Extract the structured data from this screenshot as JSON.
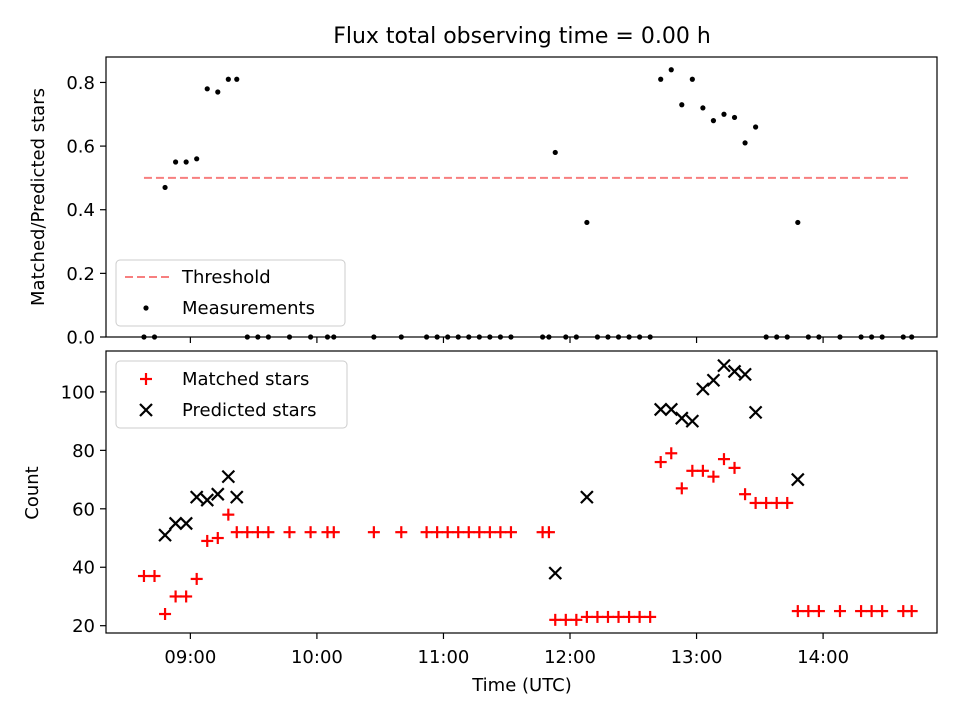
{
  "title": "Flux total observing time = 0.00 h",
  "colors": {
    "threshold": "#f77f7f",
    "measurement": "#000000",
    "matched": "#ff0000",
    "predicted": "#000000",
    "axes": "#000000",
    "legend_border": "#cccccc"
  },
  "chart_data": [
    {
      "type": "scatter",
      "panel": "top",
      "title": "Flux total observing time = 0.00 h",
      "ylabel": "Matched/Predicted stars",
      "xlabel": "",
      "xlim": [
        "08:20",
        "14:54"
      ],
      "ylim": [
        0,
        0.88
      ],
      "yticks": [
        0.0,
        0.2,
        0.4,
        0.6,
        0.8
      ],
      "ytick_labels": [
        "0.0",
        "0.2",
        "0.4",
        "0.6",
        "0.8"
      ],
      "xticks": [
        "09:00",
        "10:00",
        "11:00",
        "12:00",
        "13:00",
        "14:00"
      ],
      "legend_position": "lower-left",
      "legend": [
        {
          "label": "Threshold",
          "marker": "dashed-line",
          "color": "#f77f7f"
        },
        {
          "label": "Measurements",
          "marker": "dot",
          "color": "#000000"
        }
      ],
      "threshold": {
        "name": "Threshold",
        "value": 0.5,
        "x_range": [
          "08:38",
          "14:42"
        ]
      },
      "series": [
        {
          "name": "Measurements",
          "marker": "dot",
          "points": [
            [
              "08:38",
              0.0
            ],
            [
              "08:43",
              0.0
            ],
            [
              "08:48",
              0.47
            ],
            [
              "08:53",
              0.55
            ],
            [
              "08:58",
              0.55
            ],
            [
              "09:03",
              0.56
            ],
            [
              "09:08",
              0.78
            ],
            [
              "09:13",
              0.77
            ],
            [
              "09:18",
              0.81
            ],
            [
              "09:22",
              0.81
            ],
            [
              "09:27",
              0.0
            ],
            [
              "09:32",
              0.0
            ],
            [
              "09:37",
              0.0
            ],
            [
              "09:47",
              0.0
            ],
            [
              "09:57",
              0.0
            ],
            [
              "10:05",
              0.0
            ],
            [
              "10:08",
              0.0
            ],
            [
              "10:27",
              0.0
            ],
            [
              "10:40",
              0.0
            ],
            [
              "10:52",
              0.0
            ],
            [
              "10:57",
              0.0
            ],
            [
              "11:02",
              0.0
            ],
            [
              "11:07",
              0.0
            ],
            [
              "11:12",
              0.0
            ],
            [
              "11:17",
              0.0
            ],
            [
              "11:22",
              0.0
            ],
            [
              "11:27",
              0.0
            ],
            [
              "11:32",
              0.0
            ],
            [
              "11:47",
              0.0
            ],
            [
              "11:50",
              0.0
            ],
            [
              "11:53",
              0.58
            ],
            [
              "11:58",
              0.0
            ],
            [
              "12:03",
              0.0
            ],
            [
              "12:08",
              0.36
            ],
            [
              "12:13",
              0.0
            ],
            [
              "12:18",
              0.0
            ],
            [
              "12:23",
              0.0
            ],
            [
              "12:28",
              0.0
            ],
            [
              "12:33",
              0.0
            ],
            [
              "12:38",
              0.0
            ],
            [
              "12:43",
              0.81
            ],
            [
              "12:48",
              0.84
            ],
            [
              "12:53",
              0.73
            ],
            [
              "12:58",
              0.81
            ],
            [
              "13:03",
              0.72
            ],
            [
              "13:08",
              0.68
            ],
            [
              "13:13",
              0.7
            ],
            [
              "13:18",
              0.69
            ],
            [
              "13:23",
              0.61
            ],
            [
              "13:28",
              0.66
            ],
            [
              "13:33",
              0.0
            ],
            [
              "13:38",
              0.0
            ],
            [
              "13:43",
              0.0
            ],
            [
              "13:48",
              0.36
            ],
            [
              "13:53",
              0.0
            ],
            [
              "13:58",
              0.0
            ],
            [
              "14:08",
              0.0
            ],
            [
              "14:18",
              0.0
            ],
            [
              "14:23",
              0.0
            ],
            [
              "14:28",
              0.0
            ],
            [
              "14:38",
              0.0
            ],
            [
              "14:42",
              0.0
            ]
          ]
        }
      ]
    },
    {
      "type": "scatter",
      "panel": "bottom",
      "title": "",
      "ylabel": "Count",
      "xlabel": "Time (UTC)",
      "xlim": [
        "08:20",
        "14:54"
      ],
      "ylim": [
        17.5,
        114
      ],
      "yticks": [
        20,
        40,
        60,
        80,
        100
      ],
      "ytick_labels": [
        "20",
        "40",
        "60",
        "80",
        "100"
      ],
      "xticks": [
        "09:00",
        "10:00",
        "11:00",
        "12:00",
        "13:00",
        "14:00"
      ],
      "xtick_labels": [
        "09:00",
        "10:00",
        "11:00",
        "12:00",
        "13:00",
        "14:00"
      ],
      "legend_position": "upper-left",
      "legend": [
        {
          "label": "Matched stars",
          "marker": "plus",
          "color": "#ff0000"
        },
        {
          "label": "Predicted stars",
          "marker": "x",
          "color": "#000000"
        }
      ],
      "series": [
        {
          "name": "Matched stars",
          "marker": "plus",
          "points": [
            [
              "08:38",
              37
            ],
            [
              "08:43",
              37
            ],
            [
              "08:48",
              24
            ],
            [
              "08:53",
              30
            ],
            [
              "08:58",
              30
            ],
            [
              "09:03",
              36
            ],
            [
              "09:08",
              49
            ],
            [
              "09:13",
              50
            ],
            [
              "09:18",
              58
            ],
            [
              "09:22",
              52
            ],
            [
              "09:27",
              52
            ],
            [
              "09:32",
              52
            ],
            [
              "09:37",
              52
            ],
            [
              "09:47",
              52
            ],
            [
              "09:57",
              52
            ],
            [
              "10:05",
              52
            ],
            [
              "10:08",
              52
            ],
            [
              "10:27",
              52
            ],
            [
              "10:40",
              52
            ],
            [
              "10:52",
              52
            ],
            [
              "10:57",
              52
            ],
            [
              "11:02",
              52
            ],
            [
              "11:07",
              52
            ],
            [
              "11:12",
              52
            ],
            [
              "11:17",
              52
            ],
            [
              "11:22",
              52
            ],
            [
              "11:27",
              52
            ],
            [
              "11:32",
              52
            ],
            [
              "11:47",
              52
            ],
            [
              "11:50",
              52
            ],
            [
              "11:53",
              22
            ],
            [
              "11:58",
              22
            ],
            [
              "12:03",
              22
            ],
            [
              "12:08",
              23
            ],
            [
              "12:13",
              23
            ],
            [
              "12:18",
              23
            ],
            [
              "12:23",
              23
            ],
            [
              "12:28",
              23
            ],
            [
              "12:33",
              23
            ],
            [
              "12:38",
              23
            ],
            [
              "12:43",
              76
            ],
            [
              "12:48",
              79
            ],
            [
              "12:53",
              67
            ],
            [
              "12:58",
              73
            ],
            [
              "13:03",
              73
            ],
            [
              "13:08",
              71
            ],
            [
              "13:13",
              77
            ],
            [
              "13:18",
              74
            ],
            [
              "13:23",
              65
            ],
            [
              "13:28",
              62
            ],
            [
              "13:33",
              62
            ],
            [
              "13:38",
              62
            ],
            [
              "13:43",
              62
            ],
            [
              "13:48",
              25
            ],
            [
              "13:53",
              25
            ],
            [
              "13:58",
              25
            ],
            [
              "14:08",
              25
            ],
            [
              "14:18",
              25
            ],
            [
              "14:23",
              25
            ],
            [
              "14:28",
              25
            ],
            [
              "14:38",
              25
            ],
            [
              "14:42",
              25
            ]
          ]
        },
        {
          "name": "Predicted stars",
          "marker": "x",
          "points": [
            [
              "08:48",
              51
            ],
            [
              "08:53",
              55
            ],
            [
              "08:58",
              55
            ],
            [
              "09:03",
              64
            ],
            [
              "09:08",
              63
            ],
            [
              "09:13",
              65
            ],
            [
              "09:18",
              71
            ],
            [
              "09:22",
              64
            ],
            [
              "11:53",
              38
            ],
            [
              "12:08",
              64
            ],
            [
              "12:43",
              94
            ],
            [
              "12:48",
              94
            ],
            [
              "12:53",
              91
            ],
            [
              "12:58",
              90
            ],
            [
              "13:03",
              101
            ],
            [
              "13:08",
              104
            ],
            [
              "13:13",
              109
            ],
            [
              "13:18",
              107
            ],
            [
              "13:23",
              106
            ],
            [
              "13:28",
              93
            ],
            [
              "13:48",
              70
            ]
          ]
        }
      ]
    }
  ]
}
